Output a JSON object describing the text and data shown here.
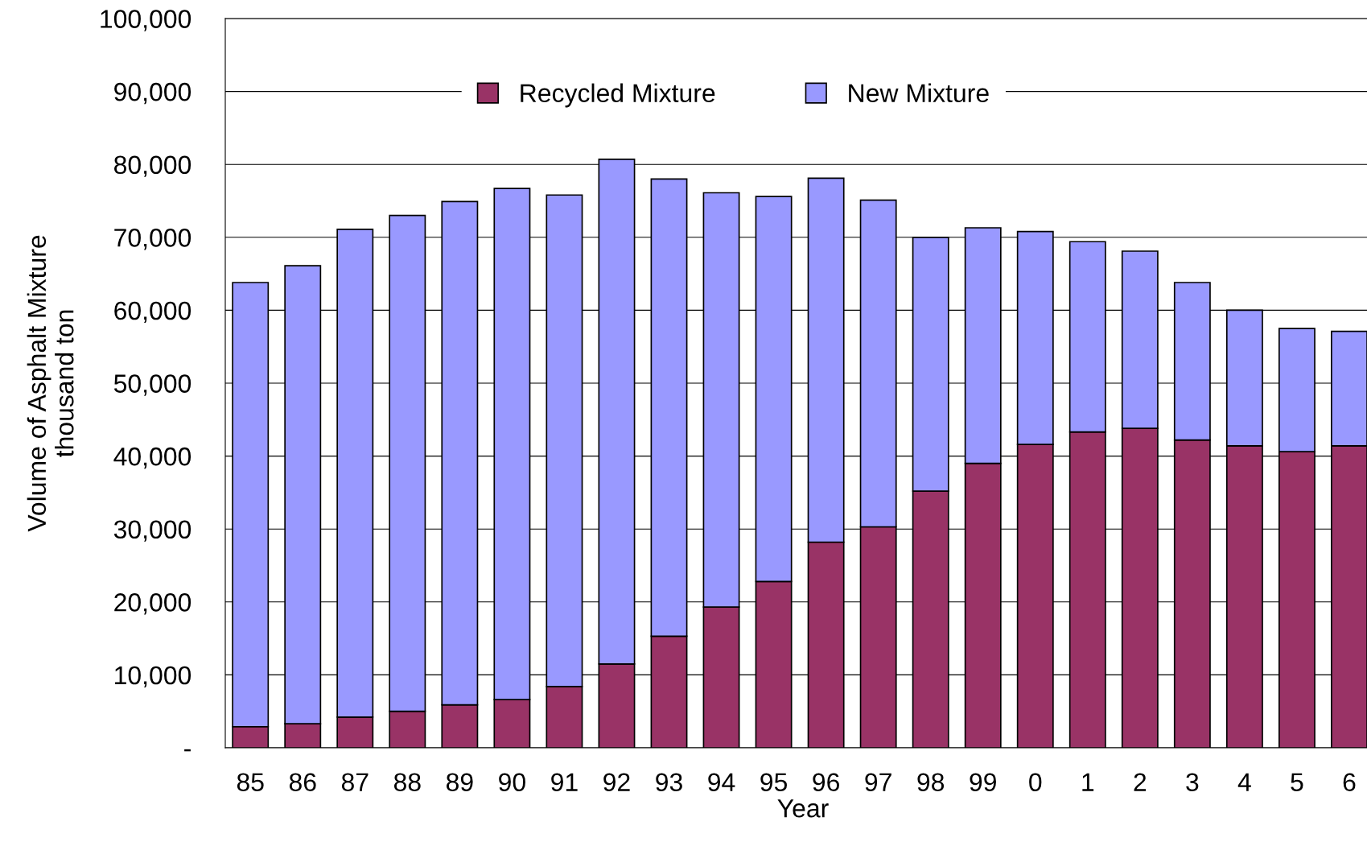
{
  "chart_data": {
    "type": "bar",
    "stacked": true,
    "xlabel": "Year",
    "ylabel": "Volume of Asphalt Mixture\nthousand ton",
    "categories": [
      "85",
      "86",
      "87",
      "88",
      "89",
      "90",
      "91",
      "92",
      "93",
      "94",
      "95",
      "96",
      "97",
      "98",
      "99",
      "0",
      "1",
      "2",
      "3",
      "4",
      "5",
      "6"
    ],
    "series": [
      {
        "name": "Recycled Mixture",
        "color": "#993366",
        "values": [
          2900,
          3300,
          4200,
          5000,
          5900,
          6600,
          8400,
          11500,
          15300,
          19300,
          22800,
          28200,
          30300,
          35200,
          39000,
          41600,
          43300,
          43800,
          42200,
          41400,
          40600,
          41400
        ]
      },
      {
        "name": "New Mixture",
        "color": "#9999ff",
        "values": [
          60900,
          62800,
          66900,
          68000,
          69000,
          70100,
          67400,
          69200,
          62700,
          56800,
          52800,
          49900,
          44800,
          34800,
          32300,
          29200,
          26100,
          24300,
          21600,
          18600,
          16900,
          15700
        ]
      }
    ],
    "ylim": [
      0,
      100000
    ],
    "yticks": [
      {
        "value": 0,
        "label": "-"
      },
      {
        "value": 10000,
        "label": "10,000"
      },
      {
        "value": 20000,
        "label": "20,000"
      },
      {
        "value": 30000,
        "label": "30,000"
      },
      {
        "value": 40000,
        "label": "40,000"
      },
      {
        "value": 50000,
        "label": "50,000"
      },
      {
        "value": 60000,
        "label": "60,000"
      },
      {
        "value": 70000,
        "label": "70,000"
      },
      {
        "value": 80000,
        "label": "80,000"
      },
      {
        "value": 90000,
        "label": "90,000"
      },
      {
        "value": 100000,
        "label": "100,000"
      }
    ],
    "grid": "y",
    "legend": "top"
  }
}
